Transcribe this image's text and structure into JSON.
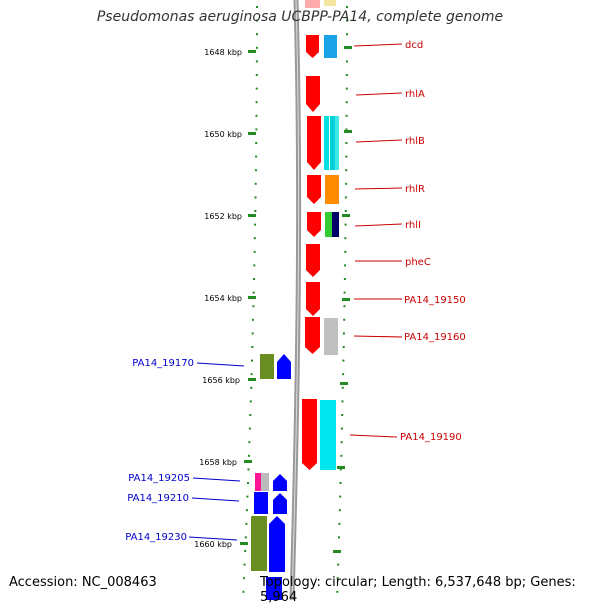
{
  "title": "Pseudomonas aeruginosa UCBPP-PA14, complete genome",
  "accession_label": "Accession: NC_008463",
  "summary_label": "Topology: circular; Length: 6,537,648 bp; Genes: 5,964",
  "colors": {
    "backbone": "#999999",
    "ruler": "#228B22",
    "plus_label": "#cc0000",
    "minus_label": "#0000cc",
    "red_gene": "#ff0000",
    "blue_gene": "#0000ff"
  },
  "ruler_ticks": [
    "1648 kbp",
    "1650 kbp",
    "1652 kbp",
    "1654 kbp",
    "1656 kbp",
    "1658 kbp",
    "1660 kbp"
  ],
  "plus_genes": [
    "dcd",
    "rhlA",
    "rhlB",
    "rhlR",
    "rhlI",
    "pheC",
    "PA14_19150",
    "PA14_19160",
    "PA14_19190"
  ],
  "minus_genes": [
    "PA14_19170",
    "PA14_19205",
    "PA14_19210",
    "PA14_19230"
  ]
}
